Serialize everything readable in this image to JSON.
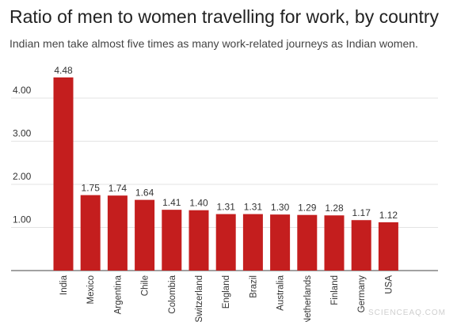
{
  "chart_data": {
    "type": "bar",
    "title": "Ratio of men to women travelling for work, by country",
    "subtitle": "Indian men take almost five times as many work-related journeys as Indian women.",
    "categories": [
      "India",
      "Mexico",
      "Argentina",
      "Chile",
      "Colombia",
      "Switzerland",
      "England",
      "Brazil",
      "Australia",
      "Netherlands",
      "Finland",
      "Germany",
      "USA"
    ],
    "values": [
      4.48,
      1.75,
      1.74,
      1.64,
      1.41,
      1.4,
      1.31,
      1.31,
      1.3,
      1.29,
      1.28,
      1.17,
      1.12
    ],
    "data_labels": [
      "4.48",
      "1.75",
      "1.74",
      "1.64",
      "1.41",
      "1.40",
      "1.31",
      "1.31",
      "1.30",
      "1.29",
      "1.28",
      "1.17",
      "1.12"
    ],
    "yticks": [
      {
        "value": 1,
        "label": "1.00"
      },
      {
        "value": 2,
        "label": "2.00"
      },
      {
        "value": 3,
        "label": "3.00"
      },
      {
        "value": 4,
        "label": "4.00"
      }
    ],
    "ylim": [
      0,
      4.6
    ],
    "grid": true,
    "bar_color": "#c41e1e",
    "grid_color": "#e3e3e3",
    "baseline_color": "#444444"
  },
  "watermark": "SCIENCEAQ.COM"
}
